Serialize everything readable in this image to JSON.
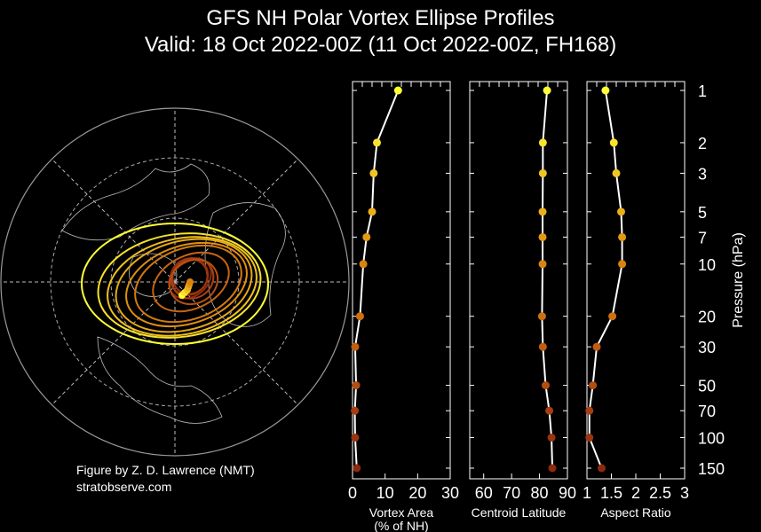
{
  "title_line1": "GFS NH Polar Vortex Ellipse Profiles",
  "title_line2": "Valid: 18 Oct 2022-00Z  (11 Oct 2022-00Z, FH168)",
  "credit_line1": "Figure by Z. D. Lawrence (NMT)",
  "credit_line2": "stratobserve.com",
  "colors": {
    "background": "#000000",
    "profile_line": "#ffffff",
    "map_ring": "#999999",
    "pressure_colorscale": [
      "#ffff33",
      "#f0c020",
      "#e09010",
      "#c86410",
      "#a84010",
      "#8c2a10"
    ]
  },
  "chart_data": [
    {
      "type": "map",
      "panel": "polar-stereographic-map",
      "description_shown": "North polar stereographic map with vortex ellipses colored by pressure level",
      "ellipses": [
        {
          "pressure_hPa": 1,
          "color": "#ffff33"
        },
        {
          "pressure_hPa": 2,
          "color": "#f7e22a"
        },
        {
          "pressure_hPa": 3,
          "color": "#f0c020"
        },
        {
          "pressure_hPa": 5,
          "color": "#e8a818"
        },
        {
          "pressure_hPa": 7,
          "color": "#e09010"
        },
        {
          "pressure_hPa": 10,
          "color": "#d47a10"
        },
        {
          "pressure_hPa": 20,
          "color": "#c86410"
        },
        {
          "pressure_hPa": 30,
          "color": "#b85012"
        },
        {
          "pressure_hPa": 50,
          "color": "#a84010"
        },
        {
          "pressure_hPa": 70,
          "color": "#983410"
        },
        {
          "pressure_hPa": 100,
          "color": "#902e10"
        },
        {
          "pressure_hPa": 150,
          "color": "#8c2a10"
        }
      ]
    },
    {
      "type": "line",
      "panel": "vortex-area",
      "xlabel": "Vortex Area",
      "xlabel2": "(% of NH)",
      "xlim": [
        0,
        30
      ],
      "xticks": [
        "0",
        "10",
        "20",
        "30"
      ],
      "y_scale": "log",
      "series": [
        {
          "pressure": [
            1,
            2,
            3,
            5,
            7,
            10,
            20,
            30,
            50,
            70,
            100,
            150
          ],
          "values": [
            14,
            7.5,
            6.5,
            6,
            4.3,
            3.3,
            2.3,
            0.8,
            1.1,
            0.7,
            0.8,
            1.3
          ]
        }
      ]
    },
    {
      "type": "line",
      "panel": "centroid-latitude",
      "xlabel": "Centroid Latitude",
      "xlim": [
        55,
        90
      ],
      "xticks": [
        "60",
        "70",
        "80",
        "90"
      ],
      "y_scale": "log",
      "series": [
        {
          "pressure": [
            1,
            2,
            3,
            5,
            7,
            10,
            20,
            30,
            50,
            70,
            100,
            150
          ],
          "values": [
            82.7,
            81.2,
            81.2,
            81.1,
            81.1,
            81.1,
            80.9,
            81.2,
            82.2,
            83.5,
            84.3,
            84.6
          ]
        }
      ]
    },
    {
      "type": "line",
      "panel": "aspect-ratio",
      "xlabel": "Aspect Ratio",
      "xlim": [
        1,
        3
      ],
      "xticks": [
        "1",
        "1.5",
        "2",
        "2.5",
        "3"
      ],
      "y_scale": "log",
      "series": [
        {
          "pressure": [
            1,
            2,
            3,
            5,
            7,
            10,
            20,
            30,
            50,
            70,
            100,
            150
          ],
          "values": [
            1.38,
            1.55,
            1.6,
            1.7,
            1.72,
            1.72,
            1.52,
            1.2,
            1.12,
            1.05,
            1.05,
            1.3
          ]
        }
      ]
    }
  ],
  "pressure_axis": {
    "ylabel": "Pressure (hPa)",
    "levels": [
      1,
      2,
      3,
      5,
      7,
      10,
      20,
      30,
      50,
      70,
      100,
      150
    ],
    "tick_labels": [
      "1",
      "2",
      "3",
      "5",
      "7",
      "10",
      "20",
      "30",
      "50",
      "70",
      "100",
      "150"
    ]
  }
}
